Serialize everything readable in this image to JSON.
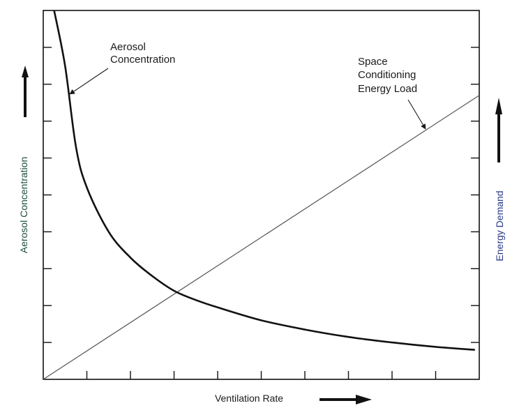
{
  "chart_data": {
    "type": "line",
    "title": "",
    "xlabel": "Ventilation Rate",
    "ylabel": "Aerosol Concentration",
    "ylabel_right": "Energy Demand",
    "xlim": [
      0,
      10
    ],
    "ylim": [
      0,
      10
    ],
    "grid": false,
    "series": [
      {
        "name": "Aerosol Concentration",
        "role": "left-axis curve",
        "x": [
          0.25,
          0.5,
          0.75,
          1.0,
          1.5,
          2.0,
          2.5,
          3.0,
          3.5,
          4.0,
          5.0,
          6.0,
          7.0,
          8.0,
          9.0,
          9.9
        ],
        "y": [
          10.0,
          8.5,
          6.3,
          5.2,
          4.0,
          3.3,
          2.8,
          2.4,
          2.15,
          1.95,
          1.6,
          1.35,
          1.15,
          1.0,
          0.88,
          0.8
        ]
      },
      {
        "name": "Space Conditioning Energy Load",
        "role": "right-axis line",
        "x": [
          0,
          10
        ],
        "y": [
          0,
          7.7
        ]
      }
    ],
    "annotations": [
      {
        "lines": [
          "Aerosol",
          "Concentration"
        ],
        "series": 0
      },
      {
        "lines": [
          "Space",
          "Conditioning",
          "Energy Load"
        ],
        "series": 1
      }
    ],
    "colors": {
      "curve": "#111111",
      "line": "#555555",
      "text": "#1a1a1a",
      "ylabel": "#1f4e3d",
      "ylabel_right": "#2b3a8a"
    }
  }
}
